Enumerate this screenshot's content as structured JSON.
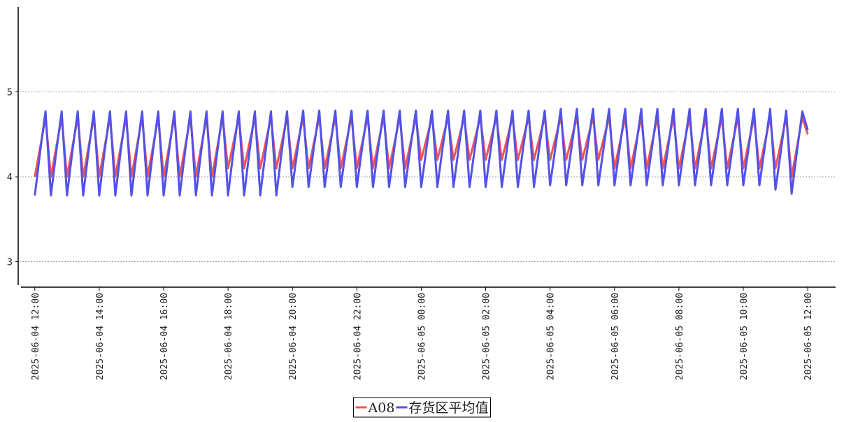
{
  "chart_data": {
    "type": "line",
    "x": [
      "2025-06-04 12:00",
      "2025-06-04 12:10",
      "2025-06-04 12:20",
      "2025-06-04 12:30",
      "2025-06-04 12:40",
      "2025-06-04 12:50",
      "2025-06-04 13:00",
      "2025-06-04 13:10",
      "2025-06-04 13:20",
      "2025-06-04 13:30",
      "2025-06-04 13:40",
      "2025-06-04 13:50",
      "2025-06-04 14:00",
      "2025-06-04 14:10",
      "2025-06-04 14:20",
      "2025-06-04 14:30",
      "2025-06-04 14:40",
      "2025-06-04 14:50",
      "2025-06-04 15:00",
      "2025-06-04 15:10",
      "2025-06-04 15:20",
      "2025-06-04 15:30",
      "2025-06-04 15:40",
      "2025-06-04 15:50",
      "2025-06-04 16:00",
      "2025-06-04 16:10",
      "2025-06-04 16:20",
      "2025-06-04 16:30",
      "2025-06-04 16:40",
      "2025-06-04 16:50",
      "2025-06-04 17:00",
      "2025-06-04 17:10",
      "2025-06-04 17:20",
      "2025-06-04 17:30",
      "2025-06-04 17:40",
      "2025-06-04 17:50",
      "2025-06-04 18:00",
      "2025-06-04 18:10",
      "2025-06-04 18:20",
      "2025-06-04 18:30",
      "2025-06-04 18:40",
      "2025-06-04 18:50",
      "2025-06-04 19:00",
      "2025-06-04 19:10",
      "2025-06-04 19:20",
      "2025-06-04 19:30",
      "2025-06-04 19:40",
      "2025-06-04 19:50",
      "2025-06-04 20:00",
      "2025-06-04 20:10",
      "2025-06-04 20:20",
      "2025-06-04 20:30",
      "2025-06-04 20:40",
      "2025-06-04 20:50",
      "2025-06-04 21:00",
      "2025-06-04 21:10",
      "2025-06-04 21:20",
      "2025-06-04 21:30",
      "2025-06-04 21:40",
      "2025-06-04 21:50",
      "2025-06-04 22:00",
      "2025-06-04 22:10",
      "2025-06-04 22:20",
      "2025-06-04 22:30",
      "2025-06-04 22:40",
      "2025-06-04 22:50",
      "2025-06-04 23:00",
      "2025-06-04 23:10",
      "2025-06-04 23:20",
      "2025-06-04 23:30",
      "2025-06-04 23:40",
      "2025-06-04 23:50",
      "2025-06-05 00:00",
      "2025-06-05 00:10",
      "2025-06-05 00:20",
      "2025-06-05 00:30",
      "2025-06-05 00:40",
      "2025-06-05 00:50",
      "2025-06-05 01:00",
      "2025-06-05 01:10",
      "2025-06-05 01:20",
      "2025-06-05 01:30",
      "2025-06-05 01:40",
      "2025-06-05 01:50",
      "2025-06-05 02:00",
      "2025-06-05 02:10",
      "2025-06-05 02:20",
      "2025-06-05 02:30",
      "2025-06-05 02:40",
      "2025-06-05 02:50",
      "2025-06-05 03:00",
      "2025-06-05 03:10",
      "2025-06-05 03:20",
      "2025-06-05 03:30",
      "2025-06-05 03:40",
      "2025-06-05 03:50",
      "2025-06-05 04:00",
      "2025-06-05 04:10",
      "2025-06-05 04:20",
      "2025-06-05 04:30",
      "2025-06-05 04:40",
      "2025-06-05 04:50",
      "2025-06-05 05:00",
      "2025-06-05 05:10",
      "2025-06-05 05:20",
      "2025-06-05 05:30",
      "2025-06-05 05:40",
      "2025-06-05 05:50",
      "2025-06-05 06:00",
      "2025-06-05 06:10",
      "2025-06-05 06:20",
      "2025-06-05 06:30",
      "2025-06-05 06:40",
      "2025-06-05 06:50",
      "2025-06-05 07:00",
      "2025-06-05 07:10",
      "2025-06-05 07:20",
      "2025-06-05 07:30",
      "2025-06-05 07:40",
      "2025-06-05 07:50",
      "2025-06-05 08:00",
      "2025-06-05 08:10",
      "2025-06-05 08:20",
      "2025-06-05 08:30",
      "2025-06-05 08:40",
      "2025-06-05 08:50",
      "2025-06-05 09:00",
      "2025-06-05 09:10",
      "2025-06-05 09:20",
      "2025-06-05 09:30",
      "2025-06-05 09:40",
      "2025-06-05 09:50",
      "2025-06-05 10:00",
      "2025-06-05 10:10",
      "2025-06-05 10:20",
      "2025-06-05 10:30",
      "2025-06-05 10:40",
      "2025-06-05 10:50",
      "2025-06-05 11:00",
      "2025-06-05 11:10",
      "2025-06-05 11:20",
      "2025-06-05 11:30",
      "2025-06-05 11:40",
      "2025-06-05 11:50",
      "2025-06-05 12:00"
    ],
    "series": [
      {
        "name": "A08",
        "color": "#f05454",
        "values": [
          4.0,
          4.35,
          4.7,
          4.0,
          4.35,
          4.7,
          4.0,
          4.35,
          4.7,
          4.0,
          4.35,
          4.7,
          4.0,
          4.35,
          4.7,
          4.0,
          4.35,
          4.7,
          4.0,
          4.35,
          4.7,
          4.0,
          4.35,
          4.7,
          4.0,
          4.35,
          4.7,
          4.0,
          4.35,
          4.7,
          4.0,
          4.35,
          4.7,
          4.0,
          4.35,
          4.7,
          4.1,
          4.4,
          4.7,
          4.1,
          4.4,
          4.7,
          4.1,
          4.4,
          4.7,
          4.1,
          4.4,
          4.7,
          4.1,
          4.4,
          4.7,
          4.1,
          4.4,
          4.7,
          4.1,
          4.4,
          4.7,
          4.1,
          4.4,
          4.7,
          4.1,
          4.4,
          4.7,
          4.1,
          4.4,
          4.7,
          4.1,
          4.4,
          4.7,
          4.1,
          4.4,
          4.7,
          4.2,
          4.45,
          4.7,
          4.2,
          4.45,
          4.7,
          4.2,
          4.45,
          4.7,
          4.2,
          4.45,
          4.7,
          4.2,
          4.45,
          4.7,
          4.2,
          4.45,
          4.7,
          4.2,
          4.45,
          4.7,
          4.2,
          4.45,
          4.7,
          4.2,
          4.45,
          4.7,
          4.2,
          4.45,
          4.7,
          4.2,
          4.45,
          4.7,
          4.2,
          4.45,
          4.7,
          4.1,
          4.4,
          4.7,
          4.1,
          4.4,
          4.7,
          4.1,
          4.4,
          4.7,
          4.1,
          4.4,
          4.7,
          4.1,
          4.4,
          4.7,
          4.1,
          4.4,
          4.7,
          4.1,
          4.4,
          4.7,
          4.1,
          4.4,
          4.7,
          4.1,
          4.4,
          4.7,
          4.1,
          4.4,
          4.7,
          4.1,
          4.4,
          4.7,
          4.0,
          4.35,
          4.7,
          4.5
        ]
      },
      {
        "name": "存货区平均值",
        "color": "#5252e8",
        "values": [
          3.78,
          4.3,
          4.77,
          3.78,
          4.3,
          4.77,
          3.78,
          4.3,
          4.77,
          3.78,
          4.3,
          4.77,
          3.78,
          4.3,
          4.77,
          3.78,
          4.3,
          4.77,
          3.78,
          4.3,
          4.77,
          3.78,
          4.3,
          4.77,
          3.78,
          4.3,
          4.77,
          3.78,
          4.3,
          4.77,
          3.78,
          4.3,
          4.77,
          3.78,
          4.3,
          4.77,
          3.78,
          4.3,
          4.77,
          3.78,
          4.3,
          4.77,
          3.78,
          4.3,
          4.77,
          3.78,
          4.3,
          4.77,
          3.88,
          4.35,
          4.78,
          3.88,
          4.35,
          4.78,
          3.88,
          4.35,
          4.78,
          3.88,
          4.35,
          4.78,
          3.88,
          4.35,
          4.78,
          3.88,
          4.35,
          4.78,
          3.88,
          4.35,
          4.78,
          3.88,
          4.35,
          4.78,
          3.88,
          4.35,
          4.78,
          3.88,
          4.35,
          4.78,
          3.88,
          4.35,
          4.78,
          3.88,
          4.35,
          4.78,
          3.88,
          4.35,
          4.78,
          3.88,
          4.35,
          4.78,
          3.88,
          4.35,
          4.78,
          3.88,
          4.35,
          4.78,
          3.9,
          4.35,
          4.8,
          3.9,
          4.35,
          4.8,
          3.9,
          4.35,
          4.8,
          3.9,
          4.35,
          4.8,
          3.9,
          4.35,
          4.8,
          3.9,
          4.35,
          4.8,
          3.9,
          4.35,
          4.8,
          3.9,
          4.35,
          4.8,
          3.9,
          4.35,
          4.8,
          3.9,
          4.35,
          4.8,
          3.9,
          4.35,
          4.8,
          3.9,
          4.35,
          4.8,
          3.9,
          4.35,
          4.8,
          3.9,
          4.35,
          4.8,
          3.85,
          4.3,
          4.78,
          3.8,
          4.3,
          4.77,
          4.55
        ]
      }
    ],
    "xlim": [
      "2025-06-04 11:29",
      "2025-06-05 12:52"
    ],
    "xticks": [
      "2025-06-04 12:00",
      "2025-06-04 14:00",
      "2025-06-04 16:00",
      "2025-06-04 18:00",
      "2025-06-04 20:00",
      "2025-06-04 22:00",
      "2025-06-05 00:00",
      "2025-06-05 02:00",
      "2025-06-05 04:00",
      "2025-06-05 06:00",
      "2025-06-05 08:00",
      "2025-06-05 10:00",
      "2025-06-05 12:00"
    ],
    "ylim": [
      2.7,
      6
    ],
    "yticks": [
      3,
      4,
      5
    ],
    "grid": true,
    "legend": "bottom"
  }
}
